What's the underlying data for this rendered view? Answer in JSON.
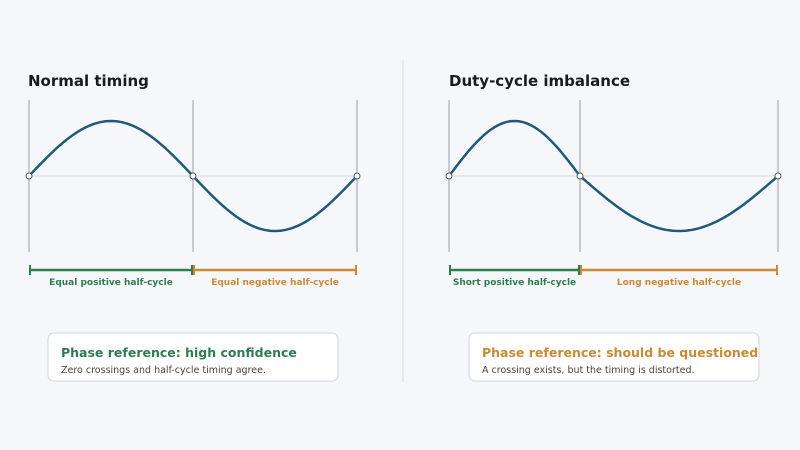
{
  "panels": [
    {
      "title": "Normal timing",
      "positive_label": "Equal positive half-cycle",
      "negative_label": "Equal negative half-cycle",
      "callout": {
        "heading": "Phase reference: high confidence",
        "text": "Zero crossings and half-cycle timing agree."
      }
    },
    {
      "title": "Duty-cycle imbalance",
      "positive_label": "Short positive half-cycle",
      "negative_label": "Long negative half-cycle",
      "callout": {
        "heading": "Phase reference: should be questioned",
        "text": "A crossing exists, but the timing is distorted."
      }
    }
  ]
}
